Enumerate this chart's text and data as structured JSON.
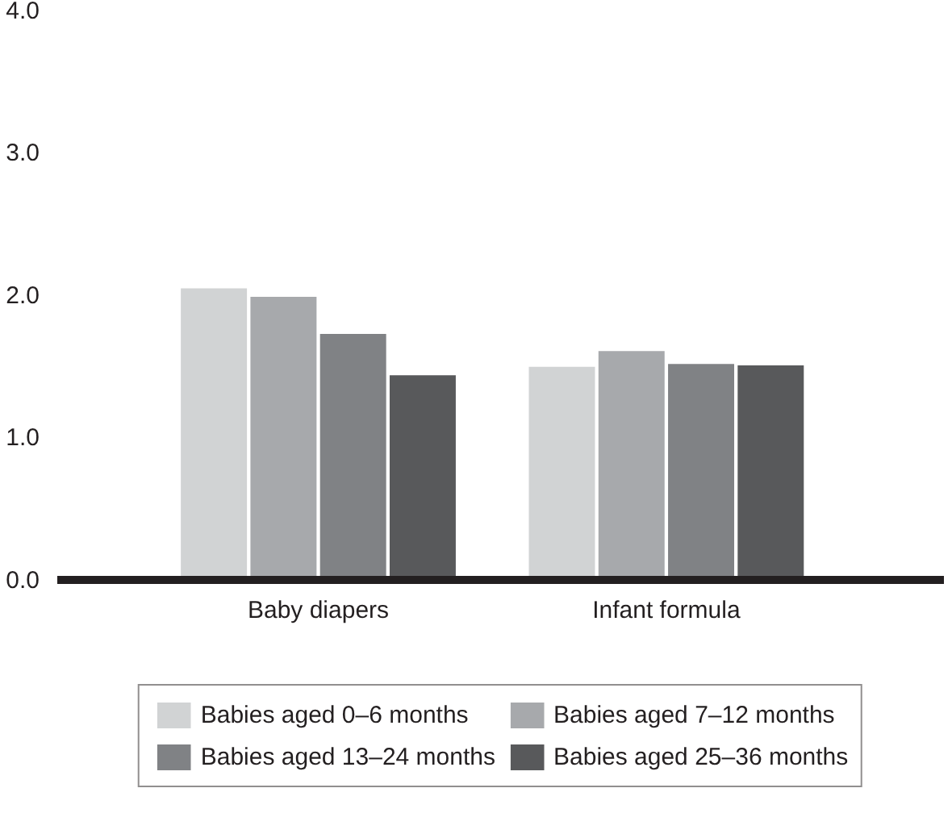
{
  "chart_data": {
    "type": "bar",
    "categories": [
      "Baby diapers",
      "Infant formula"
    ],
    "series": [
      {
        "name": "Babies aged 0–6 months",
        "color": "#d1d3d4",
        "values": [
          2.04,
          1.49
        ]
      },
      {
        "name": "Babies aged 7–12 months",
        "color": "#a7a9ac",
        "values": [
          1.98,
          1.6
        ]
      },
      {
        "name": "Babies aged 13–24 months",
        "color": "#808285",
        "values": [
          1.72,
          1.51
        ]
      },
      {
        "name": "Babies aged 25–36 months",
        "color": "#58595b",
        "values": [
          1.43,
          1.5
        ]
      }
    ],
    "ylim": [
      0,
      4
    ],
    "yticks": [
      {
        "value": 0,
        "label": "0.0"
      },
      {
        "value": 1,
        "label": "1.0"
      },
      {
        "value": 2,
        "label": "2.0"
      },
      {
        "value": 3,
        "label": "3.0"
      },
      {
        "value": 4,
        "label": "4.0"
      }
    ],
    "grid": false,
    "legend": "bottom"
  }
}
